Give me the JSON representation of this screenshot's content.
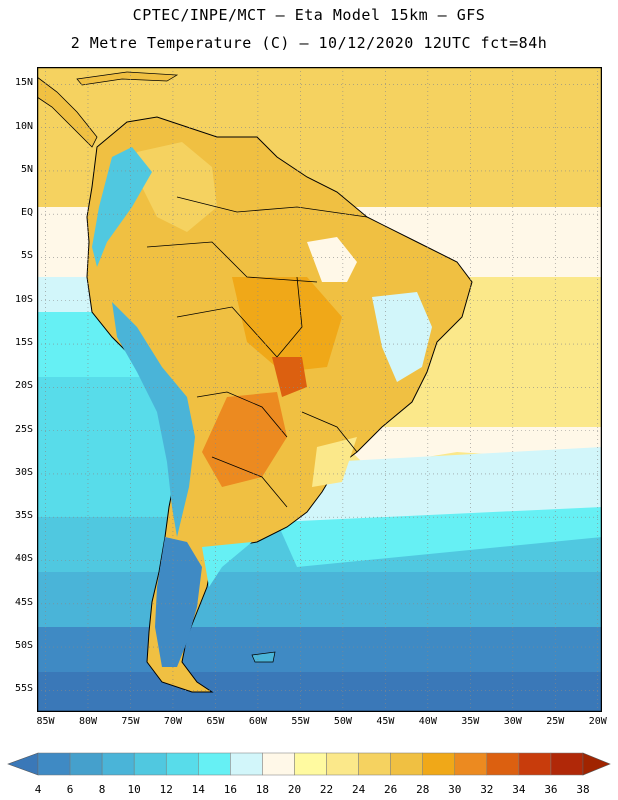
{
  "title_line1": "CPTEC/INPE/MCT –  Eta Model 15km – GFS",
  "title_line2": "2 Metre Temperature (C) – 10/12/2020 12UTC fct=84h",
  "map": {
    "lon_range": [
      -86,
      -19.5
    ],
    "lat_range": [
      -57.5,
      17
    ],
    "lat_ticks": [
      "15N",
      "10N",
      "5N",
      "EQ",
      "5S",
      "10S",
      "15S",
      "20S",
      "25S",
      "30S",
      "35S",
      "40S",
      "45S",
      "50S",
      "55S"
    ],
    "lat_values": [
      15,
      10,
      5,
      0,
      -5,
      -10,
      -15,
      -20,
      -25,
      -30,
      -35,
      -40,
      -45,
      -50,
      -55
    ],
    "lon_ticks": [
      "85W",
      "80W",
      "75W",
      "70W",
      "65W",
      "60W",
      "55W",
      "50W",
      "45W",
      "40W",
      "35W",
      "30W",
      "25W",
      "20W"
    ],
    "lon_values": [
      -85,
      -80,
      -75,
      -70,
      -65,
      -60,
      -55,
      -50,
      -45,
      -40,
      -35,
      -30,
      -25,
      -20
    ],
    "grid": "dotted"
  },
  "colorbar": {
    "labels": [
      "4",
      "6",
      "8",
      "10",
      "12",
      "14",
      "16",
      "18",
      "20",
      "22",
      "24",
      "26",
      "28",
      "30",
      "32",
      "34",
      "36",
      "38"
    ],
    "colors": [
      "#3a78b8",
      "#3f8ac4",
      "#45a0cc",
      "#4ab4d8",
      "#50c8e0",
      "#58dcea",
      "#66f0f4",
      "#d2f6fa",
      "#fff8e8",
      "#fffaa0",
      "#fbe88a",
      "#f5d260",
      "#f0c042",
      "#f0a818",
      "#ec8a20",
      "#dc6010",
      "#c83c0c",
      "#b02808",
      "#a02400"
    ]
  }
}
